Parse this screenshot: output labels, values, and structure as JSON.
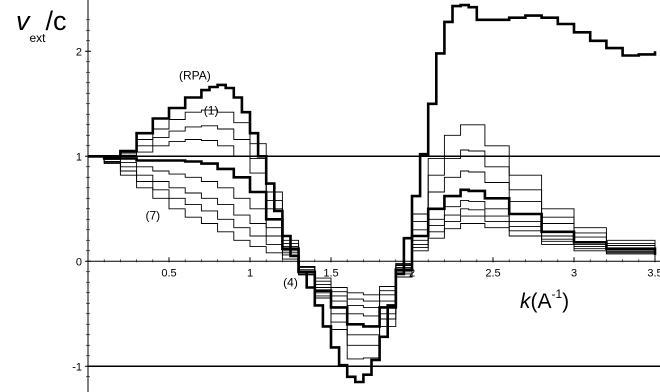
{
  "chart_data": {
    "type": "line",
    "title": "",
    "ylabel": {
      "v": "v",
      "sub": "ext",
      "rest": "/c"
    },
    "xlabel": {
      "k": "k",
      "open": "(A",
      "sup": "-1",
      "close": ")"
    },
    "xlim": [
      0,
      3.5
    ],
    "ylim": [
      -1.15,
      2.45
    ],
    "xticks": [
      {
        "value": 0.5,
        "label": "0.5"
      },
      {
        "value": 1,
        "label": "1"
      },
      {
        "value": 1.5,
        "label": "1.5"
      },
      {
        "value": 2,
        "label": "2"
      },
      {
        "value": 2.5,
        "label": "2.5"
      },
      {
        "value": 3,
        "label": "3"
      },
      {
        "value": 3.5,
        "label": "3.5"
      }
    ],
    "yticks": [
      {
        "value": 2,
        "label": "2"
      },
      {
        "value": 1,
        "label": "1"
      },
      {
        "value": 0,
        "label": "0"
      },
      {
        "value": -1,
        "label": "-1"
      }
    ],
    "hlines": [
      1,
      -1
    ],
    "annotations": [
      {
        "text": "(RPA)",
        "x": 0.66,
        "y": 1.73
      },
      {
        "text": "(1)",
        "x": 0.76,
        "y": 1.4
      },
      {
        "text": "(4)",
        "x": 1.25,
        "y": -0.24
      },
      {
        "text": "(7)",
        "x": 0.4,
        "y": 0.4
      }
    ],
    "series": [
      {
        "bold": true,
        "points": [
          [
            0,
            1
          ],
          [
            0.1,
            1.0
          ],
          [
            0.2,
            1.05
          ],
          [
            0.3,
            1.22
          ],
          [
            0.4,
            1.36
          ],
          [
            0.5,
            1.46
          ],
          [
            0.6,
            1.56
          ],
          [
            0.7,
            1.63
          ],
          [
            0.75,
            1.66
          ],
          [
            0.8,
            1.68
          ],
          [
            0.85,
            1.65
          ],
          [
            0.9,
            1.56
          ],
          [
            0.95,
            1.42
          ],
          [
            1.0,
            1.22
          ],
          [
            1.05,
            1.0
          ],
          [
            1.1,
            0.74
          ],
          [
            1.15,
            0.48
          ],
          [
            1.2,
            0.24
          ],
          [
            1.25,
            0.05
          ],
          [
            1.3,
            -0.1
          ],
          [
            1.35,
            -0.25
          ],
          [
            1.4,
            -0.42
          ],
          [
            1.45,
            -0.62
          ],
          [
            1.5,
            -0.82
          ],
          [
            1.55,
            -0.99
          ],
          [
            1.6,
            -1.1
          ],
          [
            1.65,
            -1.15
          ],
          [
            1.7,
            -1.08
          ],
          [
            1.75,
            -0.94
          ],
          [
            1.8,
            -0.72
          ],
          [
            1.85,
            -0.42
          ],
          [
            1.9,
            -0.12
          ],
          [
            1.95,
            0.22
          ],
          [
            2.0,
            0.62
          ],
          [
            2.05,
            1.02
          ],
          [
            2.1,
            1.5
          ],
          [
            2.15,
            1.98
          ],
          [
            2.2,
            2.28
          ],
          [
            2.25,
            2.43
          ],
          [
            2.3,
            2.44
          ],
          [
            2.35,
            2.42
          ],
          [
            2.4,
            2.3
          ],
          [
            2.5,
            2.3
          ],
          [
            2.6,
            2.32
          ],
          [
            2.7,
            2.34
          ],
          [
            2.8,
            2.32
          ],
          [
            2.9,
            2.26
          ],
          [
            3.0,
            2.18
          ],
          [
            3.1,
            2.1
          ],
          [
            3.2,
            2.03
          ],
          [
            3.3,
            1.96
          ],
          [
            3.4,
            1.97
          ],
          [
            3.5,
            2.0
          ]
        ]
      },
      {
        "bold": false,
        "points": [
          [
            0,
            1
          ],
          [
            0.1,
            1.0
          ],
          [
            0.2,
            1.04
          ],
          [
            0.3,
            1.16
          ],
          [
            0.4,
            1.26
          ],
          [
            0.5,
            1.35
          ],
          [
            0.6,
            1.42
          ],
          [
            0.7,
            1.44
          ],
          [
            0.8,
            1.42
          ],
          [
            0.9,
            1.32
          ],
          [
            1.0,
            1.12
          ],
          [
            1.1,
            0.66
          ],
          [
            1.2,
            0.2
          ],
          [
            1.3,
            -0.12
          ],
          [
            1.4,
            -0.35
          ],
          [
            1.5,
            -0.65
          ],
          [
            1.6,
            -0.93
          ],
          [
            1.7,
            -0.92
          ],
          [
            1.8,
            -0.62
          ],
          [
            1.9,
            -0.15
          ],
          [
            2.0,
            0.45
          ],
          [
            2.1,
            0.98
          ],
          [
            2.2,
            1.2
          ],
          [
            2.3,
            1.3
          ],
          [
            2.35,
            1.3
          ],
          [
            2.45,
            1.1
          ],
          [
            2.6,
            0.82
          ],
          [
            2.8,
            0.5
          ],
          [
            3.0,
            0.32
          ],
          [
            3.2,
            0.2
          ],
          [
            3.5,
            0.1
          ]
        ]
      },
      {
        "bold": false,
        "points": [
          [
            0,
            1
          ],
          [
            0.1,
            0.99
          ],
          [
            0.2,
            1.03
          ],
          [
            0.3,
            1.1
          ],
          [
            0.4,
            1.18
          ],
          [
            0.5,
            1.24
          ],
          [
            0.6,
            1.28
          ],
          [
            0.7,
            1.29
          ],
          [
            0.8,
            1.26
          ],
          [
            0.9,
            1.16
          ],
          [
            1.0,
            0.98
          ],
          [
            1.1,
            0.58
          ],
          [
            1.2,
            0.17
          ],
          [
            1.3,
            -0.12
          ],
          [
            1.4,
            -0.33
          ],
          [
            1.5,
            -0.58
          ],
          [
            1.6,
            -0.8
          ],
          [
            1.7,
            -0.8
          ],
          [
            1.8,
            -0.55
          ],
          [
            1.9,
            -0.12
          ],
          [
            2.0,
            0.38
          ],
          [
            2.1,
            0.82
          ],
          [
            2.2,
            0.98
          ],
          [
            2.3,
            1.06
          ],
          [
            2.35,
            1.05
          ],
          [
            2.45,
            0.9
          ],
          [
            2.6,
            0.68
          ],
          [
            2.8,
            0.42
          ],
          [
            3.0,
            0.27
          ],
          [
            3.2,
            0.17
          ],
          [
            3.5,
            0.09
          ]
        ]
      },
      {
        "bold": false,
        "points": [
          [
            0,
            1
          ],
          [
            0.1,
            0.99
          ],
          [
            0.2,
            1.01
          ],
          [
            0.3,
            1.04
          ],
          [
            0.4,
            1.1
          ],
          [
            0.5,
            1.14
          ],
          [
            0.6,
            1.16
          ],
          [
            0.7,
            1.15
          ],
          [
            0.8,
            1.1
          ],
          [
            0.9,
            1.0
          ],
          [
            1.0,
            0.84
          ],
          [
            1.1,
            0.5
          ],
          [
            1.2,
            0.14
          ],
          [
            1.3,
            -0.13
          ],
          [
            1.4,
            -0.3
          ],
          [
            1.5,
            -0.5
          ],
          [
            1.6,
            -0.7
          ],
          [
            1.7,
            -0.7
          ],
          [
            1.8,
            -0.5
          ],
          [
            1.9,
            -0.1
          ],
          [
            2.0,
            0.3
          ],
          [
            2.1,
            0.66
          ],
          [
            2.2,
            0.8
          ],
          [
            2.3,
            0.86
          ],
          [
            2.35,
            0.85
          ],
          [
            2.45,
            0.75
          ],
          [
            2.6,
            0.57
          ],
          [
            2.8,
            0.36
          ],
          [
            3.0,
            0.23
          ],
          [
            3.2,
            0.15
          ],
          [
            3.5,
            0.08
          ]
        ]
      },
      {
        "bold": true,
        "points": [
          [
            0,
            1
          ],
          [
            0.1,
            0.98
          ],
          [
            0.2,
            0.98
          ],
          [
            0.3,
            0.96
          ],
          [
            0.4,
            0.96
          ],
          [
            0.5,
            0.96
          ],
          [
            0.6,
            0.95
          ],
          [
            0.7,
            0.93
          ],
          [
            0.8,
            0.88
          ],
          [
            0.9,
            0.8
          ],
          [
            1.0,
            0.66
          ],
          [
            1.1,
            0.4
          ],
          [
            1.2,
            0.12
          ],
          [
            1.3,
            -0.1
          ],
          [
            1.4,
            -0.28
          ],
          [
            1.5,
            -0.44
          ],
          [
            1.6,
            -0.6
          ],
          [
            1.7,
            -0.62
          ],
          [
            1.8,
            -0.44
          ],
          [
            1.9,
            -0.08
          ],
          [
            2.0,
            0.24
          ],
          [
            2.1,
            0.5
          ],
          [
            2.2,
            0.62
          ],
          [
            2.3,
            0.68
          ],
          [
            2.35,
            0.67
          ],
          [
            2.45,
            0.6
          ],
          [
            2.6,
            0.45
          ],
          [
            2.8,
            0.28
          ],
          [
            3.0,
            0.18
          ],
          [
            3.2,
            0.12
          ],
          [
            3.5,
            0.06
          ]
        ]
      },
      {
        "bold": false,
        "points": [
          [
            0,
            1
          ],
          [
            0.1,
            0.97
          ],
          [
            0.2,
            0.94
          ],
          [
            0.3,
            0.9
          ],
          [
            0.4,
            0.86
          ],
          [
            0.5,
            0.83
          ],
          [
            0.6,
            0.8
          ],
          [
            0.7,
            0.76
          ],
          [
            0.8,
            0.7
          ],
          [
            0.9,
            0.6
          ],
          [
            1.0,
            0.5
          ],
          [
            1.1,
            0.32
          ],
          [
            1.2,
            0.1
          ],
          [
            1.3,
            -0.08
          ],
          [
            1.4,
            -0.25
          ],
          [
            1.5,
            -0.38
          ],
          [
            1.6,
            -0.5
          ],
          [
            1.7,
            -0.52
          ],
          [
            1.8,
            -0.38
          ],
          [
            1.9,
            -0.06
          ],
          [
            2.0,
            0.2
          ],
          [
            2.1,
            0.4
          ],
          [
            2.2,
            0.52
          ],
          [
            2.3,
            0.58
          ],
          [
            2.35,
            0.57
          ],
          [
            2.45,
            0.5
          ],
          [
            2.6,
            0.38
          ],
          [
            2.8,
            0.24
          ],
          [
            3.0,
            0.16
          ],
          [
            3.2,
            0.1
          ],
          [
            3.5,
            0.05
          ]
        ]
      },
      {
        "bold": false,
        "points": [
          [
            0,
            1
          ],
          [
            0.1,
            0.95
          ],
          [
            0.2,
            0.9
          ],
          [
            0.3,
            0.82
          ],
          [
            0.4,
            0.76
          ],
          [
            0.5,
            0.7
          ],
          [
            0.6,
            0.65
          ],
          [
            0.7,
            0.6
          ],
          [
            0.8,
            0.54
          ],
          [
            0.9,
            0.44
          ],
          [
            1.0,
            0.36
          ],
          [
            1.1,
            0.24
          ],
          [
            1.2,
            0.08
          ],
          [
            1.3,
            -0.06
          ],
          [
            1.4,
            -0.22
          ],
          [
            1.5,
            -0.33
          ],
          [
            1.6,
            -0.42
          ],
          [
            1.7,
            -0.44
          ],
          [
            1.8,
            -0.32
          ],
          [
            1.9,
            -0.04
          ],
          [
            2.0,
            0.16
          ],
          [
            2.1,
            0.34
          ],
          [
            2.2,
            0.44
          ],
          [
            2.3,
            0.5
          ],
          [
            2.35,
            0.49
          ],
          [
            2.45,
            0.43
          ],
          [
            2.6,
            0.33
          ],
          [
            2.8,
            0.21
          ],
          [
            3.0,
            0.14
          ],
          [
            3.2,
            0.09
          ],
          [
            3.5,
            0.05
          ]
        ]
      },
      {
        "bold": false,
        "points": [
          [
            0,
            1
          ],
          [
            0.1,
            0.94
          ],
          [
            0.2,
            0.86
          ],
          [
            0.3,
            0.76
          ],
          [
            0.4,
            0.68
          ],
          [
            0.5,
            0.6
          ],
          [
            0.6,
            0.54
          ],
          [
            0.7,
            0.48
          ],
          [
            0.8,
            0.4
          ],
          [
            0.9,
            0.32
          ],
          [
            1.0,
            0.24
          ],
          [
            1.1,
            0.16
          ],
          [
            1.2,
            0.06
          ],
          [
            1.3,
            -0.05
          ],
          [
            1.4,
            -0.19
          ],
          [
            1.5,
            -0.29
          ],
          [
            1.6,
            -0.36
          ],
          [
            1.7,
            -0.38
          ],
          [
            1.8,
            -0.28
          ],
          [
            1.9,
            -0.03
          ],
          [
            2.0,
            0.13
          ],
          [
            2.1,
            0.28
          ],
          [
            2.2,
            0.38
          ],
          [
            2.3,
            0.43
          ],
          [
            2.35,
            0.43
          ],
          [
            2.45,
            0.38
          ],
          [
            2.6,
            0.29
          ],
          [
            2.8,
            0.19
          ],
          [
            3.0,
            0.12
          ],
          [
            3.2,
            0.08
          ],
          [
            3.5,
            0.04
          ]
        ]
      },
      {
        "bold": false,
        "points": [
          [
            0,
            1
          ],
          [
            0.1,
            0.93
          ],
          [
            0.2,
            0.82
          ],
          [
            0.3,
            0.7
          ],
          [
            0.4,
            0.6
          ],
          [
            0.5,
            0.5
          ],
          [
            0.6,
            0.42
          ],
          [
            0.7,
            0.36
          ],
          [
            0.8,
            0.28
          ],
          [
            0.9,
            0.2
          ],
          [
            1.0,
            0.14
          ],
          [
            1.1,
            0.08
          ],
          [
            1.2,
            0.02
          ],
          [
            1.3,
            -0.05
          ],
          [
            1.4,
            -0.16
          ],
          [
            1.5,
            -0.25
          ],
          [
            1.6,
            -0.3
          ],
          [
            1.7,
            -0.32
          ],
          [
            1.8,
            -0.24
          ],
          [
            1.9,
            -0.02
          ],
          [
            2.0,
            0.1
          ],
          [
            2.1,
            0.22
          ],
          [
            2.2,
            0.31
          ],
          [
            2.3,
            0.36
          ],
          [
            2.35,
            0.36
          ],
          [
            2.45,
            0.32
          ],
          [
            2.6,
            0.24
          ],
          [
            2.8,
            0.16
          ],
          [
            3.0,
            0.1
          ],
          [
            3.2,
            0.07
          ],
          [
            3.5,
            0.04
          ]
        ]
      }
    ]
  }
}
